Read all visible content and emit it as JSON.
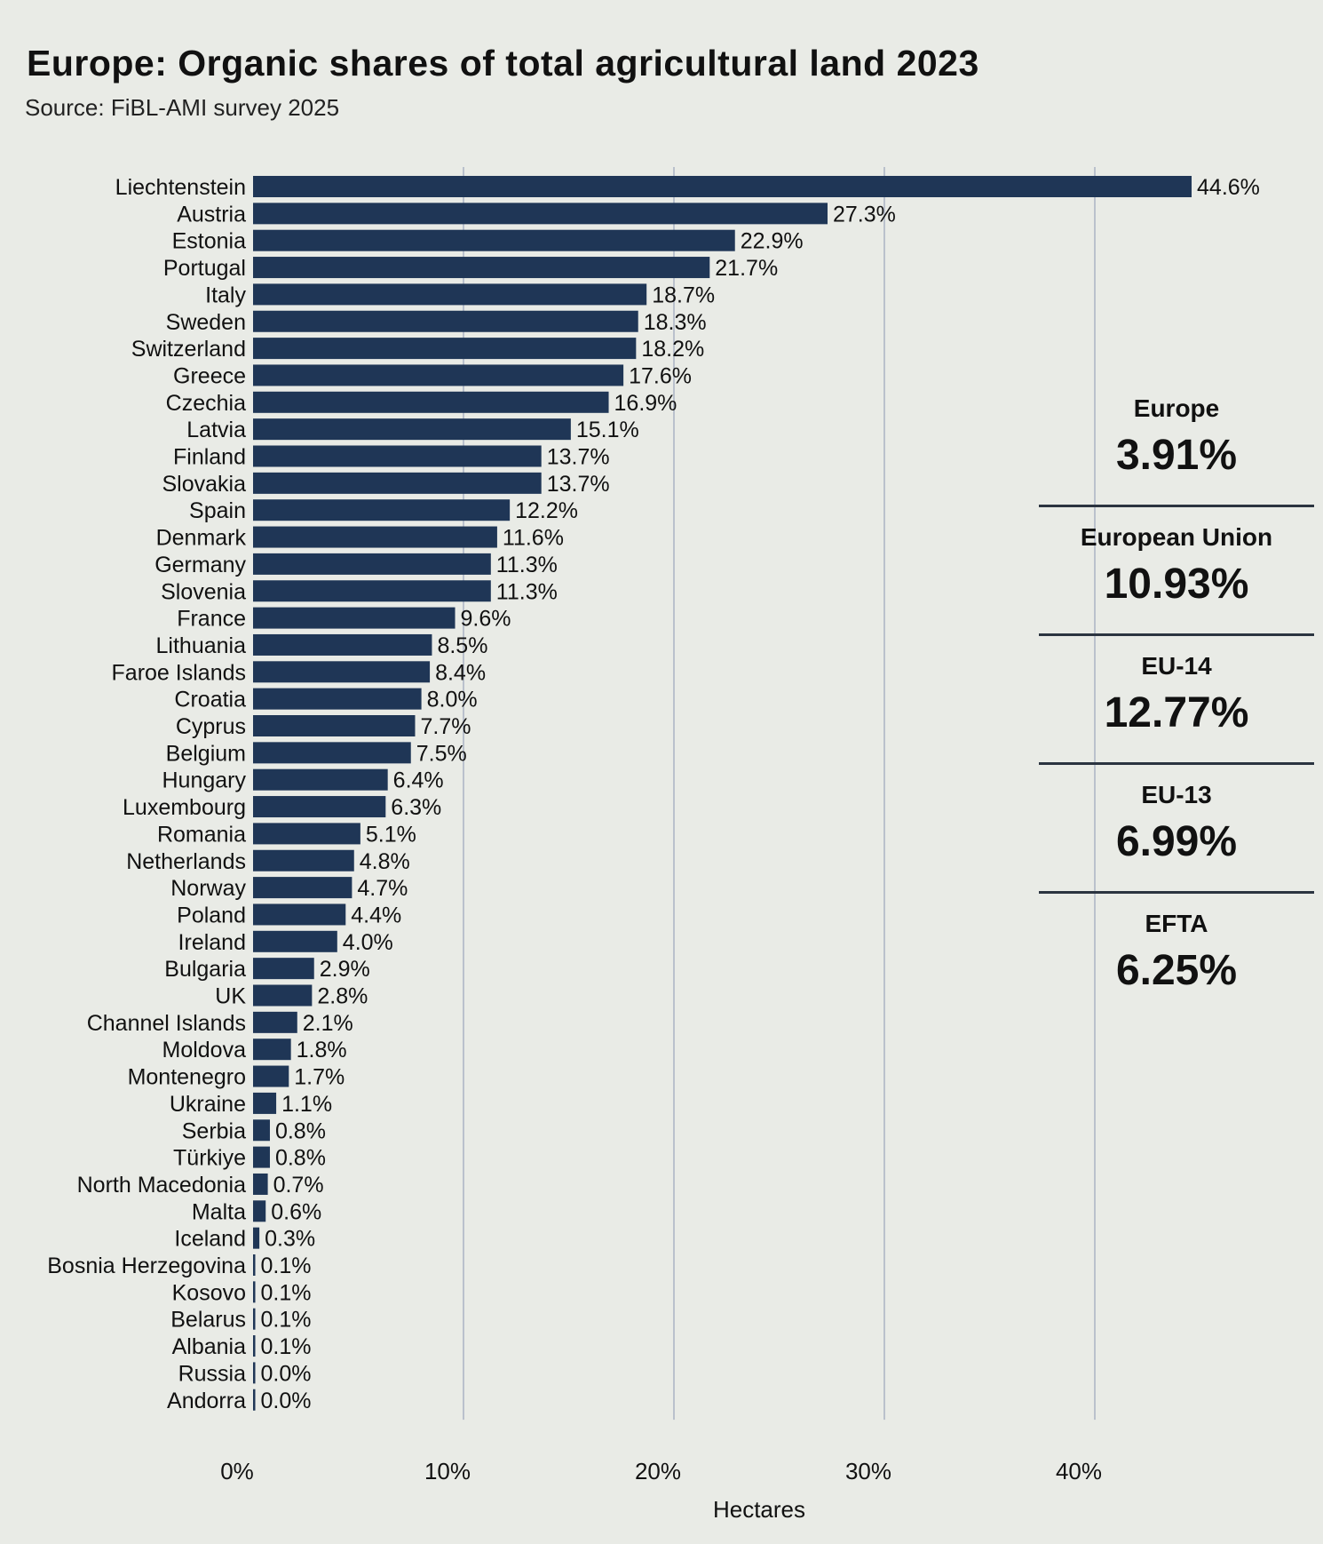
{
  "chart_data": {
    "type": "bar",
    "orientation": "horizontal",
    "title": "Europe: Organic shares of total agricultural land 2023",
    "subtitle": "Source: FiBL-AMI survey 2025",
    "xlabel": "Hectares",
    "xlim": [
      0,
      44.6
    ],
    "x_ticks": [
      "0%",
      "10%",
      "20%",
      "30%",
      "40%"
    ],
    "grid": "vertical",
    "bar_color": "#1f3656",
    "categories": [
      "Liechtenstein",
      "Austria",
      "Estonia",
      "Portugal",
      "Italy",
      "Sweden",
      "Switzerland",
      "Greece",
      "Czechia",
      "Latvia",
      "Finland",
      "Slovakia",
      "Spain",
      "Denmark",
      "Germany",
      "Slovenia",
      "France",
      "Lithuania",
      "Faroe Islands",
      "Croatia",
      "Cyprus",
      "Belgium",
      "Hungary",
      "Luxembourg",
      "Romania",
      "Netherlands",
      "Norway",
      "Poland",
      "Ireland",
      "Bulgaria",
      "UK",
      "Channel Islands",
      "Moldova",
      "Montenegro",
      "Ukraine",
      "Serbia",
      "Türkiye",
      "North Macedonia",
      "Malta",
      "Iceland",
      "Bosnia Herzegovina",
      "Kosovo",
      "Belarus",
      "Albania",
      "Russia",
      "Andorra"
    ],
    "values": [
      44.6,
      27.3,
      22.9,
      21.7,
      18.7,
      18.3,
      18.2,
      17.6,
      16.9,
      15.1,
      13.7,
      13.7,
      12.2,
      11.6,
      11.3,
      11.3,
      9.6,
      8.5,
      8.4,
      8.0,
      7.7,
      7.5,
      6.4,
      6.3,
      5.1,
      4.8,
      4.7,
      4.4,
      4.0,
      2.9,
      2.8,
      2.1,
      1.8,
      1.7,
      1.1,
      0.8,
      0.8,
      0.7,
      0.6,
      0.3,
      0.1,
      0.1,
      0.1,
      0.1,
      0.0,
      0.0
    ],
    "value_labels": [
      "44.6%",
      "27.3%",
      "22.9%",
      "21.7%",
      "18.7%",
      "18.3%",
      "18.2%",
      "17.6%",
      "16.9%",
      "15.1%",
      "13.7%",
      "13.7%",
      "12.2%",
      "11.6%",
      "11.3%",
      "11.3%",
      "9.6%",
      "8.5%",
      "8.4%",
      "8.0%",
      "7.7%",
      "7.5%",
      "6.4%",
      "6.3%",
      "5.1%",
      "4.8%",
      "4.7%",
      "4.4%",
      "4.0%",
      "2.9%",
      "2.8%",
      "2.1%",
      "1.8%",
      "1.7%",
      "1.1%",
      "0.8%",
      "0.8%",
      "0.7%",
      "0.6%",
      "0.3%",
      "0.1%",
      "0.1%",
      "0.1%",
      "0.1%",
      "0.0%",
      "0.0%"
    ]
  },
  "summary": [
    {
      "label": "Europe",
      "value": "3.91%"
    },
    {
      "label": "European Union",
      "value": "10.93%"
    },
    {
      "label": "EU-14",
      "value": "12.77%"
    },
    {
      "label": "EU-13",
      "value": "6.99%"
    },
    {
      "label": "EFTA",
      "value": "6.25%"
    }
  ]
}
